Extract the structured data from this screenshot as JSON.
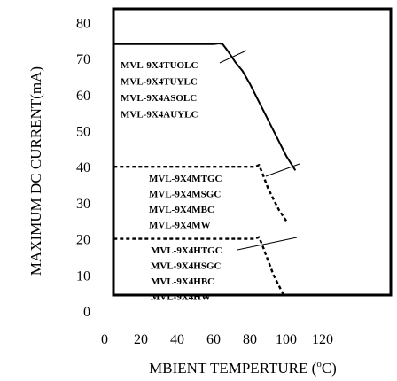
{
  "chart_data": {
    "type": "line",
    "title": "",
    "xlabel": "MBIENT TEMPERTURE (°C)",
    "xlabel_main": "MBIENT TEMPERTURE (",
    "xlabel_deg": "o",
    "xlabel_unit": "C)",
    "ylabel": "MAXIMUM DC CURRENT(mA)",
    "xlim": [
      0,
      120
    ],
    "ylim": [
      0,
      80
    ],
    "xticks": [
      0,
      20,
      40,
      60,
      80,
      100,
      120
    ],
    "yticks": [
      0,
      10,
      20,
      30,
      40,
      50,
      60,
      70,
      80
    ],
    "grid": false,
    "series": [
      {
        "style": "solid",
        "x": [
          5,
          60,
          63,
          65,
          68,
          72,
          76,
          80,
          84,
          88,
          92,
          96,
          100,
          105
        ],
        "y": [
          74,
          74,
          74.2,
          74,
          72,
          69,
          66.5,
          63,
          59,
          55,
          51,
          47,
          43,
          39
        ]
      },
      {
        "style": "dashed",
        "x": [
          5,
          83,
          85,
          87,
          90,
          93,
          96,
          100
        ],
        "y": [
          40,
          40,
          40.5,
          38,
          34,
          31,
          28,
          25
        ]
      },
      {
        "style": "dashed",
        "x": [
          5,
          83,
          85,
          87,
          90,
          93,
          96,
          99
        ],
        "y": [
          20,
          20,
          20.5,
          18,
          14,
          10,
          7,
          4
        ]
      }
    ],
    "annotations": [
      {
        "group": "group-1",
        "labels": [
          "MVL-9X4TUOLC",
          "MVL-9X4TUYLC",
          "MVL-9X4ASOLC",
          "MVL-9X4AUYLC"
        ]
      },
      {
        "group": "group-2",
        "labels": [
          "MVL-9X4MTGC",
          "MVL-9X4MSGC",
          "MVL-9X4MBC",
          "MVL-9X4MW"
        ]
      },
      {
        "group": "group-3",
        "labels": [
          "MVL-9X4HTGC",
          "MVL-9X4HSGC",
          "MVL-9X4HBC",
          "MVL-9X4HW"
        ]
      }
    ]
  }
}
